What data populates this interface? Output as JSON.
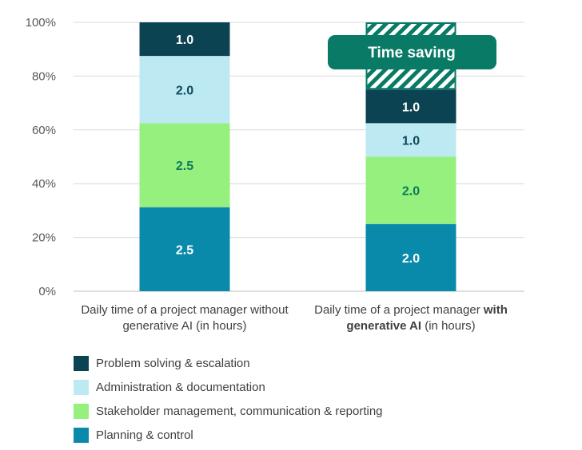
{
  "chart_data": {
    "type": "bar",
    "stacked": true,
    "normalized": true,
    "y_ticks": [
      "0%",
      "20%",
      "40%",
      "60%",
      "80%",
      "100%"
    ],
    "ylim": [
      0,
      100
    ],
    "grid": true,
    "categories": [
      {
        "line1": "Daily time of a project manager without",
        "line2": "generative AI (in hours)",
        "line2_bold_part": "",
        "line1_bold_part": ""
      },
      {
        "line1": "Daily time of a project manager ",
        "line1_bold_part": "with",
        "line2_bold_part": "generative AI",
        "line2": " (in hours)"
      }
    ],
    "series": [
      {
        "name": "Planning & control",
        "color": "#0a8aab",
        "label_color": "#ffffff",
        "values": [
          2.5,
          2.0
        ],
        "labels": [
          "2.5",
          "2.0"
        ]
      },
      {
        "name": "Stakeholder management, communication & reporting",
        "color": "#96f07e",
        "label_color": "#0c7a5c",
        "values": [
          2.5,
          2.0
        ],
        "labels": [
          "2.5",
          "2.0"
        ]
      },
      {
        "name": "Administration & documentation",
        "color": "#bde9f2",
        "label_color": "#0d4a5c",
        "values": [
          2.0,
          1.0
        ],
        "labels": [
          "2.0",
          "1.0"
        ]
      },
      {
        "name": "Problem solving & escalation",
        "color": "#0b4352",
        "label_color": "#ffffff",
        "values": [
          1.0,
          1.0
        ],
        "labels": [
          "1.0",
          "1.0"
        ]
      }
    ],
    "totals_base_hours": 8.0,
    "annotation": {
      "text": "Time saving",
      "hours": 2.0,
      "bar_index": 1,
      "color": "#087a65"
    },
    "legend_order": [
      3,
      2,
      1,
      0
    ],
    "legend_placement": "bottom-left"
  }
}
